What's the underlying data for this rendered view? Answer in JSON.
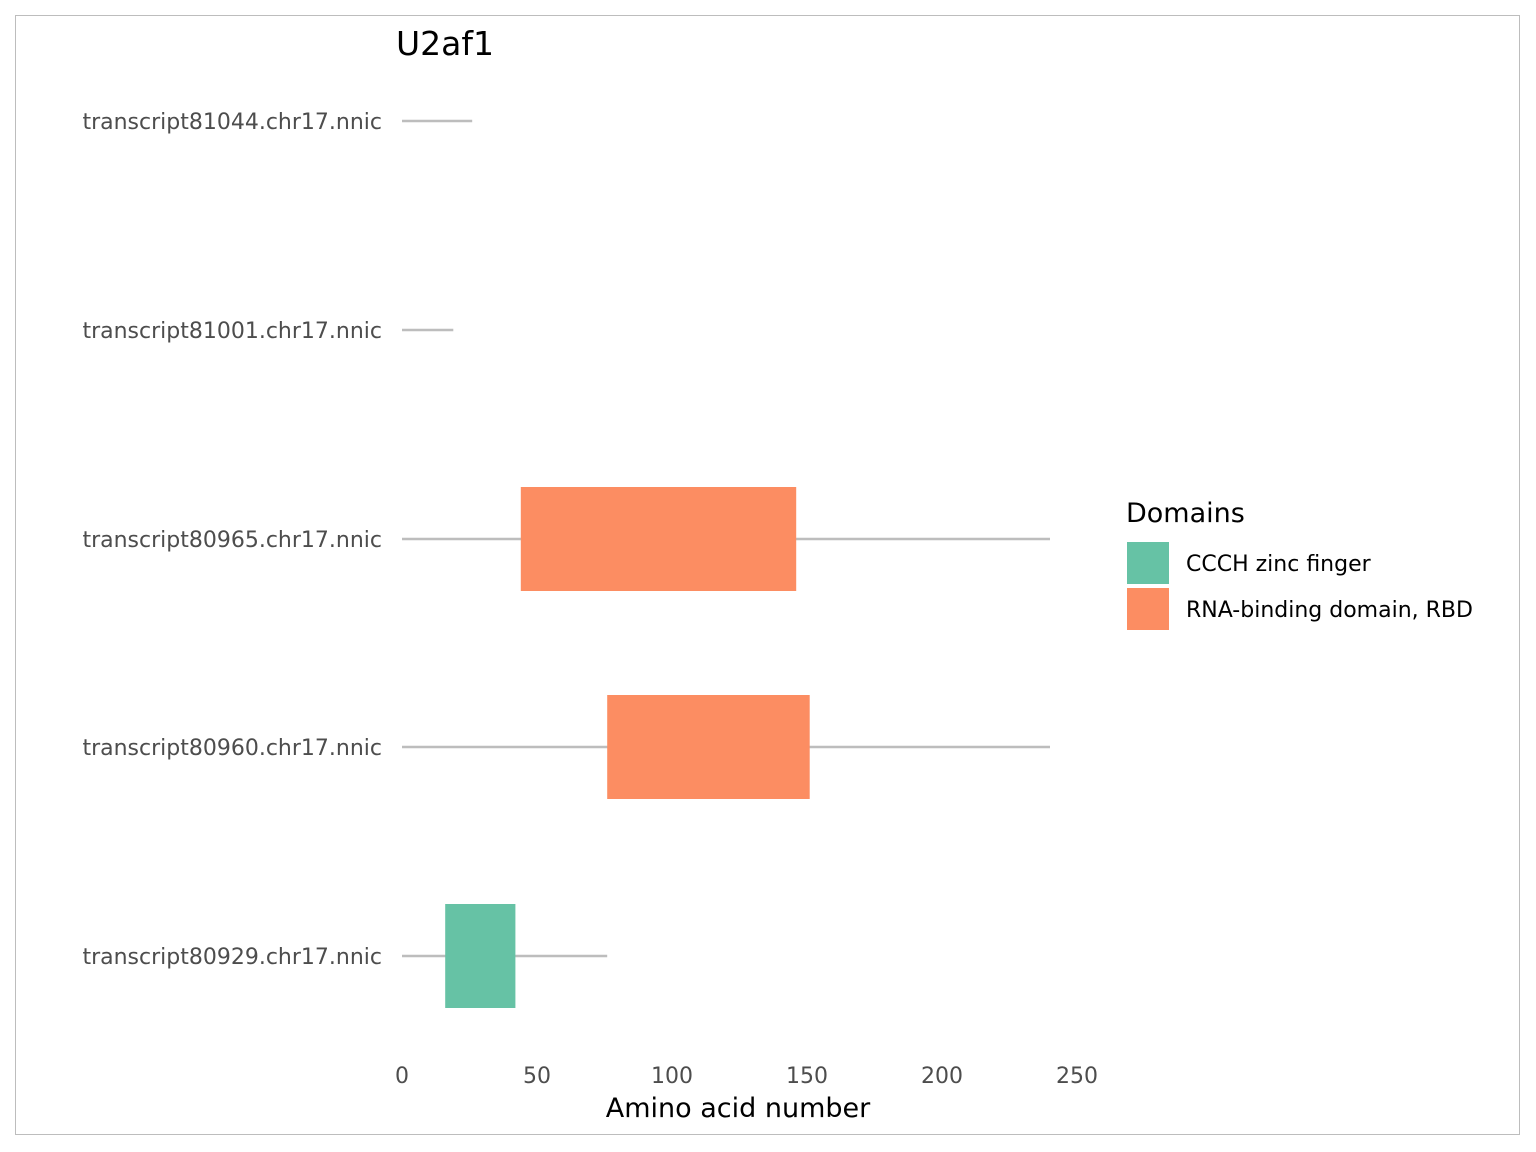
{
  "chart_data": {
    "type": "bar",
    "title": "U2af1",
    "xlabel": "Amino acid number",
    "xlim": [
      0,
      260
    ],
    "xticks": [
      0,
      50,
      100,
      150,
      200,
      250
    ],
    "grid": false,
    "legend_title": "Domains",
    "legend_position": "right",
    "legend": [
      {
        "name": "CCCH zinc finger",
        "color": "#66C2A5"
      },
      {
        "name": "RNA-binding domain, RBD",
        "color": "#FC8D62"
      }
    ],
    "backbone_color": "#BDBDBD",
    "transcripts": [
      {
        "name": "transcript81044.chr17.nnic",
        "length": 26,
        "domains": []
      },
      {
        "name": "transcript81001.chr17.nnic",
        "length": 19,
        "domains": []
      },
      {
        "name": "transcript80965.chr17.nnic",
        "length": 240,
        "domains": [
          {
            "name": "RNA-binding domain, RBD",
            "start": 44,
            "end": 146
          }
        ]
      },
      {
        "name": "transcript80960.chr17.nnic",
        "length": 240,
        "domains": [
          {
            "name": "RNA-binding domain, RBD",
            "start": 76,
            "end": 151
          }
        ]
      },
      {
        "name": "transcript80929.chr17.nnic",
        "length": 76,
        "domains": [
          {
            "name": "CCCH zinc finger",
            "start": 16,
            "end": 42
          }
        ]
      }
    ]
  }
}
